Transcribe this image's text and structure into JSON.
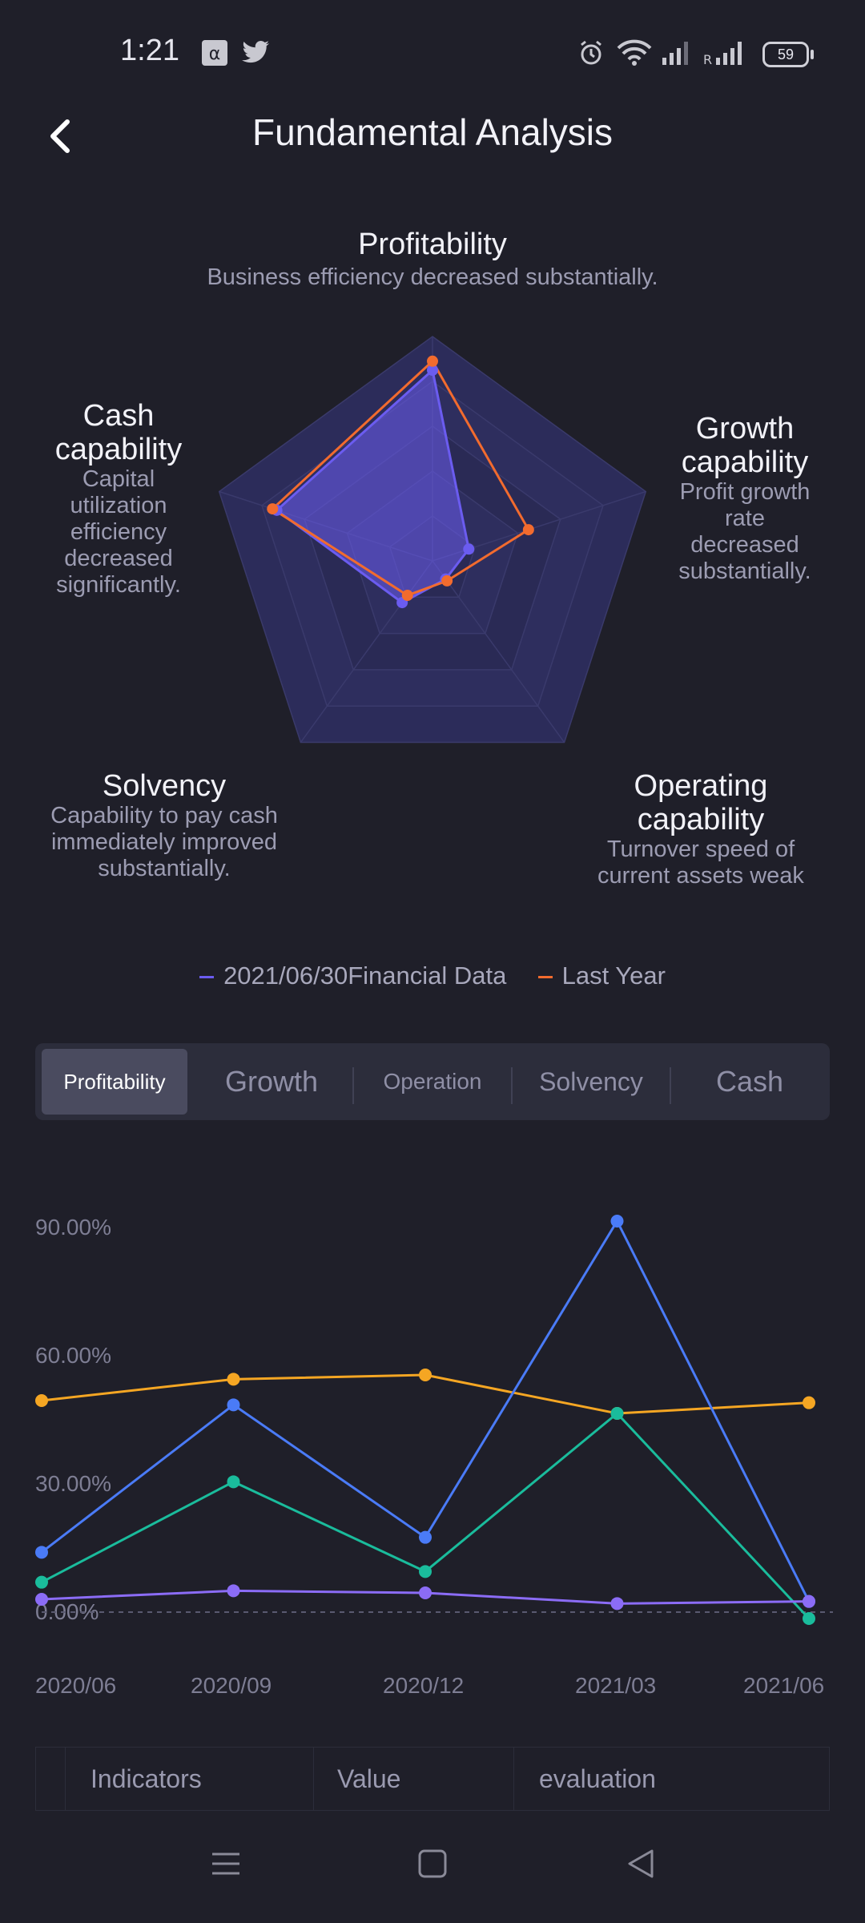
{
  "status_bar": {
    "time": "1:21",
    "battery": "59",
    "icons": [
      "alpha-icon",
      "twitter-icon",
      "alarm-icon",
      "wifi-icon",
      "signal-icon",
      "signal-roaming-icon",
      "battery-icon"
    ],
    "roaming_label": "R"
  },
  "header": {
    "title": "Fundamental Analysis",
    "back_icon": "chevron-left-icon"
  },
  "radar": {
    "axes": [
      {
        "title": "Profitability",
        "desc": "Business efficiency decreased substantially."
      },
      {
        "title": "Growth capability",
        "desc": "Profit growth rate decreased substantially."
      },
      {
        "title": "Operating capability",
        "desc": "Turnover speed of current assets weak"
      },
      {
        "title": "Solvency",
        "desc": "Capability to pay cash immediately improved substantially."
      },
      {
        "title": "Cash capability",
        "desc": "Capital utilization efficiency decreased significantly."
      }
    ],
    "series": [
      {
        "name": "2021/06/30Financial Data",
        "color": "#6b5cf0",
        "values": [
          0.85,
          0.17,
          0.1,
          0.23,
          0.73
        ]
      },
      {
        "name": "Last Year",
        "color": "#f26b2e",
        "values": [
          0.89,
          0.45,
          0.11,
          0.19,
          0.75
        ]
      }
    ]
  },
  "legend": [
    {
      "label": "2021/06/30Financial Data",
      "color": "#6b5cf0"
    },
    {
      "label": "Last Year",
      "color": "#f26b2e"
    }
  ],
  "tabs": [
    {
      "label": "Profitability",
      "active": true
    },
    {
      "label": "Growth",
      "active": false
    },
    {
      "label": "Operation",
      "active": false
    },
    {
      "label": "Solvency",
      "active": false
    },
    {
      "label": "Cash",
      "active": false
    }
  ],
  "chart_data": {
    "type": "line",
    "x": [
      "2020/06",
      "2020/09",
      "2020/12",
      "2021/03",
      "2021/06"
    ],
    "yticks": [
      "90.00%",
      "60.00%",
      "30.00%",
      "0.00%"
    ],
    "ylim": [
      0,
      90
    ],
    "series": [
      {
        "color": "#f5a623",
        "values": [
          49.5,
          54.5,
          55.5,
          46.5,
          49.0
        ]
      },
      {
        "color": "#4a7bf7",
        "values": [
          14.0,
          48.5,
          17.5,
          91.5,
          2.5
        ]
      },
      {
        "color": "#1abc9c",
        "values": [
          7.0,
          30.5,
          9.5,
          46.5,
          -1.5
        ]
      },
      {
        "color": "#8b6cf6",
        "values": [
          3.0,
          5.0,
          4.5,
          2.0,
          2.5
        ]
      }
    ]
  },
  "table": {
    "headers": [
      "Indicators",
      "Value",
      "evaluation"
    ]
  },
  "nav_bar": {
    "icons": [
      "menu-icon",
      "home-icon",
      "back-icon"
    ]
  }
}
